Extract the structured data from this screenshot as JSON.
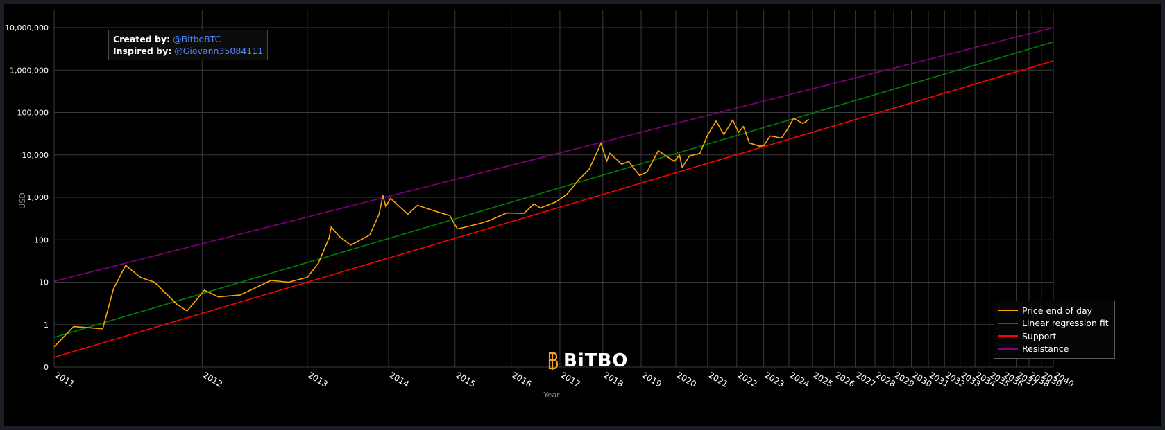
{
  "credit": {
    "created_label": "Created by:",
    "created_handle": "@BitboBTC",
    "inspired_label": "Inspired by:",
    "inspired_handle": "@Giovann35084111"
  },
  "logo": {
    "text": "BiTBO",
    "icon": "bitbo-b-icon"
  },
  "colors": {
    "background": "#000000",
    "grid": "#3a3a3a",
    "price": "#ffa500",
    "regression": "#008000",
    "support": "#ff0000",
    "resistance": "#800080"
  },
  "chart_data": {
    "type": "line",
    "xlabel": "Year",
    "ylabel": "USD",
    "yscale": "log",
    "xscale": "log (days since genesis)",
    "ylim": [
      0.1,
      10000000
    ],
    "xlim": [
      "2011",
      "2040"
    ],
    "grid": true,
    "legend_position": "bottom-right",
    "x_tick_labels": [
      "2011",
      "2012",
      "2013",
      "2014",
      "2015",
      "2016",
      "2017",
      "2018",
      "2019",
      "2020",
      "2021",
      "2022",
      "2023",
      "2024",
      "2025",
      "2026",
      "2027",
      "2028",
      "2029",
      "2030",
      "2031",
      "2032",
      "2033",
      "2034",
      "2035",
      "2036",
      "2037",
      "2038",
      "2039",
      "2040"
    ],
    "y_ticks": [
      {
        "value": 0.1,
        "label": "0"
      },
      {
        "value": 1,
        "label": "1"
      },
      {
        "value": 10,
        "label": "10"
      },
      {
        "value": 100,
        "label": "100"
      },
      {
        "value": 1000,
        "label": "1,000"
      },
      {
        "value": 10000,
        "label": "10,000"
      },
      {
        "value": 100000,
        "label": "100,000"
      },
      {
        "value": 1000000,
        "label": "1,000,000"
      },
      {
        "value": 10000000,
        "label": "10,000,000"
      }
    ],
    "series": [
      {
        "name": "Price end of day",
        "color": "#ffa500",
        "points": [
          [
            "2011-01-01",
            0.3
          ],
          [
            "2011-02-10",
            0.9
          ],
          [
            "2011-04-15",
            0.8
          ],
          [
            "2011-05-10",
            7
          ],
          [
            "2011-06-08",
            25
          ],
          [
            "2011-07-15",
            13
          ],
          [
            "2011-08-20",
            10
          ],
          [
            "2011-10-20",
            3
          ],
          [
            "2011-11-18",
            2.1
          ],
          [
            "2012-01-08",
            6.5
          ],
          [
            "2012-02-20",
            4.5
          ],
          [
            "2012-05-01",
            5
          ],
          [
            "2012-08-15",
            11
          ],
          [
            "2012-10-20",
            10
          ],
          [
            "2013-01-01",
            13
          ],
          [
            "2013-02-15",
            28
          ],
          [
            "2013-04-01",
            110
          ],
          [
            "2013-04-10",
            200
          ],
          [
            "2013-05-15",
            120
          ],
          [
            "2013-07-05",
            75
          ],
          [
            "2013-10-01",
            130
          ],
          [
            "2013-11-15",
            400
          ],
          [
            "2013-12-04",
            1100
          ],
          [
            "2013-12-18",
            600
          ],
          [
            "2014-01-10",
            950
          ],
          [
            "2014-04-10",
            400
          ],
          [
            "2014-06-01",
            650
          ],
          [
            "2014-09-01",
            480
          ],
          [
            "2014-12-01",
            370
          ],
          [
            "2015-01-15",
            180
          ],
          [
            "2015-06-01",
            240
          ],
          [
            "2015-08-01",
            280
          ],
          [
            "2015-12-01",
            430
          ],
          [
            "2016-04-01",
            420
          ],
          [
            "2016-06-15",
            700
          ],
          [
            "2016-08-01",
            560
          ],
          [
            "2016-12-01",
            780
          ],
          [
            "2017-03-01",
            1200
          ],
          [
            "2017-06-10",
            2700
          ],
          [
            "2017-09-01",
            4500
          ],
          [
            "2017-12-17",
            19000
          ],
          [
            "2018-02-05",
            7000
          ],
          [
            "2018-03-05",
            11000
          ],
          [
            "2018-06-25",
            6000
          ],
          [
            "2018-09-01",
            7000
          ],
          [
            "2018-12-15",
            3300
          ],
          [
            "2019-03-01",
            3900
          ],
          [
            "2019-06-26",
            12500
          ],
          [
            "2019-09-01",
            10000
          ],
          [
            "2019-12-15",
            7000
          ],
          [
            "2020-02-10",
            10000
          ],
          [
            "2020-03-12",
            5000
          ],
          [
            "2020-06-01",
            9500
          ],
          [
            "2020-10-01",
            10800
          ],
          [
            "2020-12-31",
            29000
          ],
          [
            "2021-04-14",
            63000
          ],
          [
            "2021-07-20",
            30000
          ],
          [
            "2021-11-10",
            67000
          ],
          [
            "2022-01-24",
            34000
          ],
          [
            "2022-03-29",
            47000
          ],
          [
            "2022-06-18",
            19000
          ],
          [
            "2022-11-09",
            16000
          ],
          [
            "2023-01-01",
            16600
          ],
          [
            "2023-04-01",
            28000
          ],
          [
            "2023-09-11",
            25000
          ],
          [
            "2023-12-01",
            38000
          ],
          [
            "2024-03-13",
            73000
          ],
          [
            "2024-08-05",
            55000
          ],
          [
            "2024-09-30",
            63000
          ],
          [
            "2024-11-01",
            70000
          ]
        ]
      },
      {
        "name": "Linear regression fit",
        "color": "#008000",
        "start": [
          "2011-01-01",
          0.5
        ],
        "end": [
          "2040-01-01",
          4600000
        ]
      },
      {
        "name": "Support",
        "color": "#ff0000",
        "start": [
          "2011-01-01",
          0.17
        ],
        "end": [
          "2040-01-01",
          1650000
        ]
      },
      {
        "name": "Resistance",
        "color": "#800080",
        "start": [
          "2011-01-01",
          10.5
        ],
        "end": [
          "2040-01-01",
          10000000
        ]
      }
    ]
  }
}
